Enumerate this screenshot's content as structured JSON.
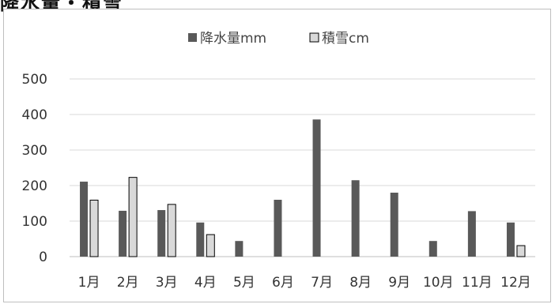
{
  "title": "降水量・積雪",
  "chart_data": {
    "type": "bar",
    "categories": [
      "1月",
      "2月",
      "3月",
      "4月",
      "5月",
      "6月",
      "7月",
      "8月",
      "9月",
      "10月",
      "11月",
      "12月"
    ],
    "series": [
      {
        "name": "降水量mm",
        "color": "#595959",
        "values": [
          211,
          129,
          131,
          96,
          44,
          160,
          386,
          215,
          180,
          44,
          128,
          96
        ]
      },
      {
        "name": "積雪cm",
        "color": "#d9d9d9",
        "values": [
          159,
          223,
          147,
          62,
          null,
          null,
          null,
          null,
          null,
          null,
          null,
          31
        ]
      }
    ],
    "ylim": [
      0,
      500
    ],
    "yticks": [
      0,
      100,
      200,
      300,
      400,
      500
    ],
    "grid": true,
    "legend": "top-center",
    "xlabel": "",
    "ylabel": ""
  }
}
